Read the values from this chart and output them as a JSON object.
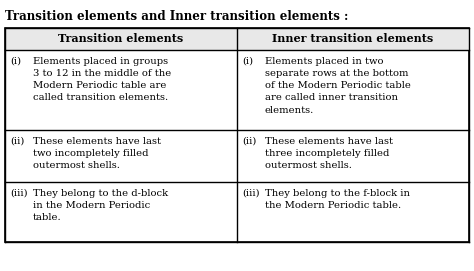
{
  "title": "Transition elements and Inner transition elements :",
  "col1_header": "Transition elements",
  "col2_header": "Inner transition elements",
  "rows": [
    {
      "label1": "(i)",
      "col1": "Elements placed in groups\n3 to 12 in the middle of the\nModern Periodic table are\ncalled transition elements.",
      "label2": "(i)",
      "col2": "Elements placed in two\nseparate rows at the bottom\nof the Modern Periodic table\nare called inner transition\nelements."
    },
    {
      "label1": "(ii)",
      "col1": "These elements have last\ntwo incompletely filled\noutermost shells.",
      "label2": "(ii)",
      "col2": "These elements have last\nthree incompletely filled\noutermost shells."
    },
    {
      "label1": "(iii)",
      "col1": "They belong to the d-block\nin the Modern Periodic\ntable.",
      "label2": "(iii)",
      "col2": "They belong to the f-block in\nthe Modern Periodic table."
    }
  ],
  "bg_color": "#ffffff",
  "border_color": "#000000",
  "title_fontsize": 8.5,
  "header_fontsize": 8.0,
  "cell_fontsize": 7.2,
  "fig_width": 4.74,
  "fig_height": 2.71
}
